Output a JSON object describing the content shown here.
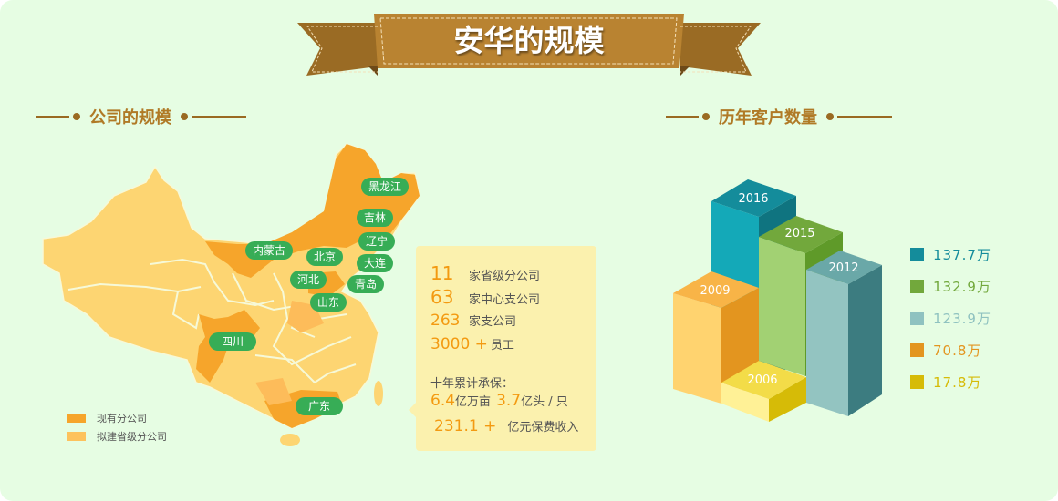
{
  "title": "安华的规模",
  "left_section": {
    "title": "公司的规模",
    "map_labels": [
      "黑龙江",
      "吉林",
      "辽宁",
      "内蒙古",
      "北京",
      "大连",
      "河北",
      "青岛",
      "山东",
      "四川",
      "广东"
    ],
    "legend": [
      {
        "label": "现有分公司",
        "color": "#f6a52b"
      },
      {
        "label": "拟建省级分公司",
        "color": "#fdc25d"
      }
    ],
    "info": {
      "stats": [
        {
          "value": "11",
          "label": "家省级分公司"
        },
        {
          "value": "63",
          "label": "家中心支公司"
        },
        {
          "value": "263",
          "label": "家支公司"
        },
        {
          "value": "3000 +",
          "label": "员工"
        }
      ],
      "cumulative_title": "十年累计承保：",
      "line1": {
        "v1": "6.4",
        "l1": "亿万亩",
        "v2": "3.7",
        "l2": "亿头 / 只"
      },
      "line2": {
        "v": "231.1 +",
        "l": "亿元保费收入"
      }
    }
  },
  "right_section": {
    "title": "历年客户数量"
  },
  "chart_data": {
    "type": "bar",
    "style": "3d isometric",
    "categories": [
      "2006",
      "2009",
      "2012",
      "2015",
      "2016"
    ],
    "values": [
      17.8,
      70.8,
      123.9,
      132.9,
      137.7
    ],
    "unit": "万",
    "legend": [
      {
        "label": "137.7万",
        "color": "#148c9b"
      },
      {
        "label": "132.9万",
        "color": "#72a83c"
      },
      {
        "label": "123.9万",
        "color": "#8fc2c0"
      },
      {
        "label": "70.8万",
        "color": "#e3951f"
      },
      {
        "label": "17.8万",
        "color": "#d6bb07"
      }
    ],
    "legend_position": "right"
  }
}
